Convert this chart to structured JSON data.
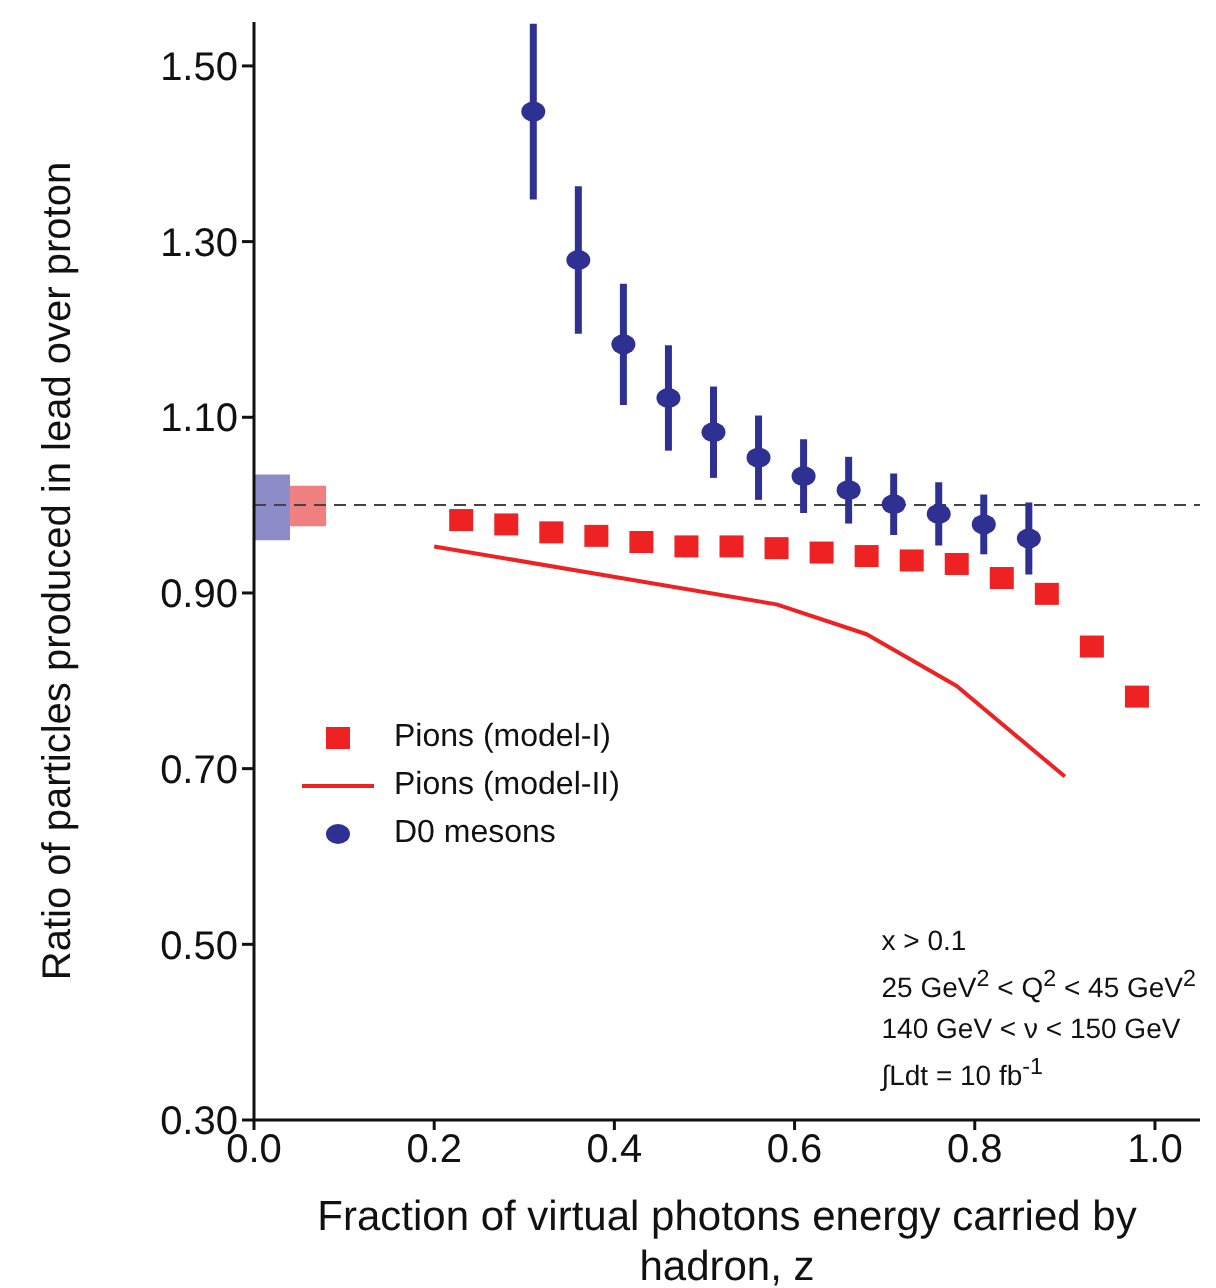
{
  "chart_data": {
    "type": "scatter",
    "xlabel": "Fraction of virtual photons energy carried by hadron, z",
    "ylabel": "Ratio of particles produced in lead over proton",
    "xlim": [
      0,
      1.05
    ],
    "ylim": [
      0.3,
      1.55
    ],
    "xticks": [
      {
        "value": 0,
        "label": "0.0"
      },
      {
        "value": 0.2,
        "label": "0.2"
      },
      {
        "value": 0.4,
        "label": "0.4"
      },
      {
        "value": 0.6,
        "label": "0.6"
      },
      {
        "value": 0.8,
        "label": "0.8"
      },
      {
        "value": 1,
        "label": "1.0"
      }
    ],
    "yticks": [
      {
        "value": 0.3,
        "label": "0.30"
      },
      {
        "value": 0.5,
        "label": "0.50"
      },
      {
        "value": 0.7,
        "label": "0.70"
      },
      {
        "value": 0.9,
        "label": "0.90"
      },
      {
        "value": 1.1,
        "label": "1.10"
      },
      {
        "value": 1.3,
        "label": "1.30"
      },
      {
        "value": 1.5,
        "label": "1.50"
      }
    ],
    "grid": false,
    "legend": "left",
    "series": [
      {
        "name": "Pions (model-I)",
        "marker": "square",
        "color": "#ee2222",
        "x": [
          0.23,
          0.28,
          0.33,
          0.38,
          0.43,
          0.48,
          0.53,
          0.58,
          0.63,
          0.68,
          0.73,
          0.78,
          0.83,
          0.88,
          0.93,
          0.98
        ],
        "values": [
          0.983,
          0.978,
          0.969,
          0.965,
          0.958,
          0.953,
          0.953,
          0.951,
          0.946,
          0.942,
          0.937,
          0.933,
          0.917,
          0.899,
          0.839,
          0.782
        ]
      },
      {
        "name": "Pions (model-II)",
        "type": "line",
        "marker": "none",
        "line_style": "solid",
        "color": "#ee2222",
        "x": [
          0.2,
          0.58,
          0.68,
          0.78,
          0.9
        ],
        "values": [
          0.953,
          0.887,
          0.853,
          0.794,
          0.691
        ]
      },
      {
        "name": "D0 mesons",
        "marker": "circle",
        "color": "#2e3192",
        "x": [
          0.31,
          0.36,
          0.41,
          0.46,
          0.51,
          0.56,
          0.61,
          0.66,
          0.71,
          0.76,
          0.81,
          0.86
        ],
        "values": [
          1.448,
          1.279,
          1.183,
          1.122,
          1.083,
          1.054,
          1.033,
          1.017,
          1.001,
          0.99,
          0.978,
          0.962
        ],
        "errors": [
          0.1,
          0.084,
          0.069,
          0.06,
          0.052,
          0.048,
          0.042,
          0.038,
          0.035,
          0.036,
          0.034,
          0.041
        ]
      },
      {
        "type": "bar",
        "color": "#8c8cc8",
        "x": [
          0.02
        ],
        "base": [
          0.96
        ],
        "values": [
          0.075
        ]
      },
      {
        "type": "bar",
        "color": "#f08080",
        "x": [
          0.06
        ],
        "base": [
          0.976
        ],
        "values": [
          0.046
        ]
      }
    ],
    "ref_lines": [
      {
        "axis": "y",
        "value": 1.0,
        "line_style": "dashed",
        "color": "#444444"
      }
    ],
    "annotations": [
      "x > 0.1",
      "25 GeV$^{2}$ < Q$^{2}$ < 45 GeV$^{2}$",
      "140 GeV < ν < 150 GeV",
      "∫Ldt = 10 fb$^{-1}$"
    ]
  }
}
